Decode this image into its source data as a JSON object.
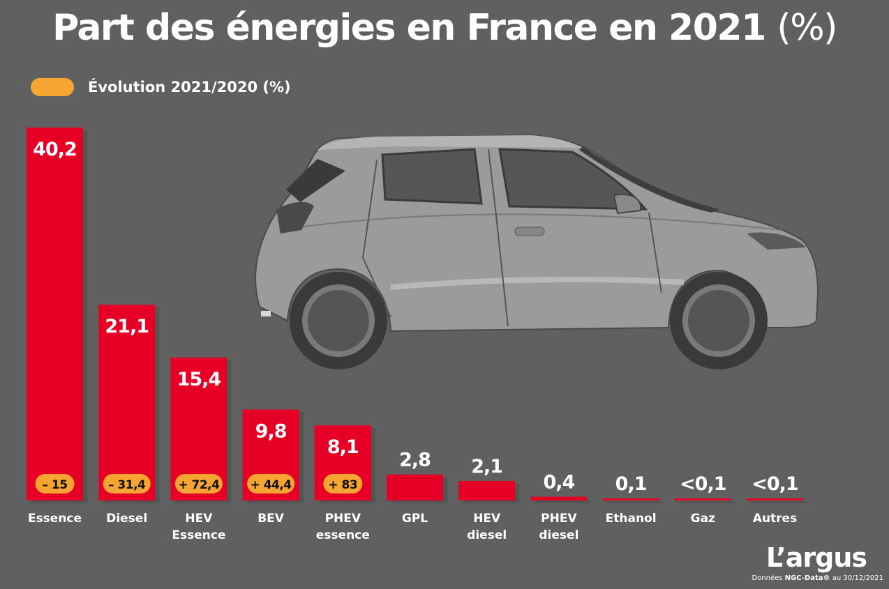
{
  "title": "Part des énergies en France en 2021",
  "title_unit": "(%)",
  "legend_label": "Évolution 2021/2020 (%)",
  "colors": {
    "bar": "#e60026",
    "badge": "#f6a533",
    "background": "#606060"
  },
  "chart_data": {
    "type": "bar",
    "title": "Part des énergies en France en 2021 (%)",
    "categories": [
      "Essence",
      "Diesel",
      "HEV Essence",
      "BEV",
      "PHEV essence",
      "GPL",
      "HEV diesel",
      "PHEV diesel",
      "Ethanol",
      "Gaz",
      "Autres"
    ],
    "values": [
      40.2,
      21.1,
      15.4,
      9.8,
      8.1,
      2.8,
      2.1,
      0.4,
      0.1,
      0.05,
      0.05
    ],
    "value_labels": [
      "40,2",
      "21,1",
      "15,4",
      "9,8",
      "8,1",
      "2,8",
      "2,1",
      "0,4",
      "0,1",
      "<0,1",
      "<0,1"
    ],
    "evolution_labels": [
      "– 15",
      "– 31,4",
      "+ 72,4",
      "+ 44,4",
      "+ 83",
      null,
      null,
      null,
      null,
      null,
      null
    ],
    "evolution_values": [
      -15,
      -31.4,
      72.4,
      44.4,
      83,
      null,
      null,
      null,
      null,
      null,
      null
    ],
    "legend": [
      "Évolution 2021/2020 (%)"
    ],
    "ylim": [
      0,
      40.2
    ],
    "grid": false
  },
  "brand": "L’argus",
  "source_prefix": "Données",
  "source_name": "NGC-Data®",
  "source_suffix": "au 30/12/2021"
}
